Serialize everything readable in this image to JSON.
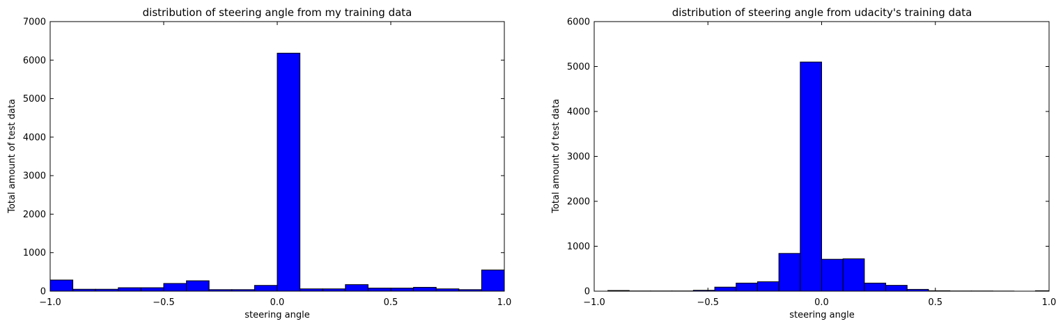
{
  "chart_data": [
    {
      "type": "bar",
      "title": "distribution of steering angle from my training data",
      "xlabel": "steering angle",
      "ylabel": "Total amount of test data",
      "xlim": [
        -1.0,
        1.0
      ],
      "ylim": [
        0,
        7000
      ],
      "xticks": [
        -1.0,
        -0.5,
        0.0,
        0.5,
        1.0
      ],
      "xtick_labels": [
        "−1.0",
        "−0.5",
        "0.0",
        "0.5",
        "1.0"
      ],
      "yticks": [
        0,
        1000,
        2000,
        3000,
        4000,
        5000,
        6000,
        7000
      ],
      "ytick_labels": [
        "0",
        "1000",
        "2000",
        "3000",
        "4000",
        "5000",
        "6000",
        "7000"
      ],
      "bar_color": "#0000ff",
      "bins": [
        {
          "x0": -1.0,
          "x1": -0.9,
          "value": 290
        },
        {
          "x0": -0.9,
          "x1": -0.8,
          "value": 50
        },
        {
          "x0": -0.8,
          "x1": -0.7,
          "value": 50
        },
        {
          "x0": -0.7,
          "x1": -0.6,
          "value": 90
        },
        {
          "x0": -0.6,
          "x1": -0.5,
          "value": 90
        },
        {
          "x0": -0.5,
          "x1": -0.4,
          "value": 200
        },
        {
          "x0": -0.4,
          "x1": -0.3,
          "value": 270
        },
        {
          "x0": -0.3,
          "x1": -0.2,
          "value": 40
        },
        {
          "x0": -0.2,
          "x1": -0.1,
          "value": 40
        },
        {
          "x0": -0.1,
          "x1": 0.0,
          "value": 150
        },
        {
          "x0": 0.0,
          "x1": 0.1,
          "value": 6180
        },
        {
          "x0": 0.1,
          "x1": 0.2,
          "value": 60
        },
        {
          "x0": 0.2,
          "x1": 0.3,
          "value": 60
        },
        {
          "x0": 0.3,
          "x1": 0.4,
          "value": 170
        },
        {
          "x0": 0.4,
          "x1": 0.5,
          "value": 80
        },
        {
          "x0": 0.5,
          "x1": 0.6,
          "value": 80
        },
        {
          "x0": 0.6,
          "x1": 0.7,
          "value": 100
        },
        {
          "x0": 0.7,
          "x1": 0.8,
          "value": 60
        },
        {
          "x0": 0.8,
          "x1": 0.9,
          "value": 40
        },
        {
          "x0": 0.9,
          "x1": 1.0,
          "value": 550
        }
      ]
    },
    {
      "type": "bar",
      "title": "distribution of steering angle from udacity's training data",
      "xlabel": "steering angle",
      "ylabel": "Total amount of test data",
      "xlim": [
        -1.0,
        1.0
      ],
      "ylim": [
        0,
        6000
      ],
      "xticks": [
        -1.0,
        -0.5,
        0.0,
        0.5,
        1.0
      ],
      "xtick_labels": [
        "−1.0",
        "−0.5",
        "0.0",
        "0.5",
        "1.0"
      ],
      "yticks": [
        0,
        1000,
        2000,
        3000,
        4000,
        5000,
        6000
      ],
      "ytick_labels": [
        "0",
        "1000",
        "2000",
        "3000",
        "4000",
        "5000",
        "6000"
      ],
      "bar_color": "#0000ff",
      "bins": [
        {
          "x0": -0.94,
          "x1": -0.846,
          "value": 15
        },
        {
          "x0": -0.846,
          "x1": -0.752,
          "value": 5
        },
        {
          "x0": -0.752,
          "x1": -0.658,
          "value": 5
        },
        {
          "x0": -0.658,
          "x1": -0.564,
          "value": 5
        },
        {
          "x0": -0.564,
          "x1": -0.47,
          "value": 20
        },
        {
          "x0": -0.47,
          "x1": -0.376,
          "value": 90
        },
        {
          "x0": -0.376,
          "x1": -0.282,
          "value": 180
        },
        {
          "x0": -0.282,
          "x1": -0.188,
          "value": 210
        },
        {
          "x0": -0.188,
          "x1": -0.094,
          "value": 840
        },
        {
          "x0": -0.094,
          "x1": 0.0,
          "value": 5100
        },
        {
          "x0": 0.0,
          "x1": 0.094,
          "value": 710
        },
        {
          "x0": 0.094,
          "x1": 0.188,
          "value": 720
        },
        {
          "x0": 0.188,
          "x1": 0.282,
          "value": 180
        },
        {
          "x0": 0.282,
          "x1": 0.376,
          "value": 130
        },
        {
          "x0": 0.376,
          "x1": 0.47,
          "value": 40
        },
        {
          "x0": 0.47,
          "x1": 0.564,
          "value": 10
        },
        {
          "x0": 0.564,
          "x1": 0.658,
          "value": 5
        },
        {
          "x0": 0.658,
          "x1": 0.752,
          "value": 5
        },
        {
          "x0": 0.752,
          "x1": 0.846,
          "value": 3
        },
        {
          "x0": 0.846,
          "x1": 0.94,
          "value": 0
        },
        {
          "x0": 0.94,
          "x1": 1.0,
          "value": 10
        }
      ]
    }
  ]
}
